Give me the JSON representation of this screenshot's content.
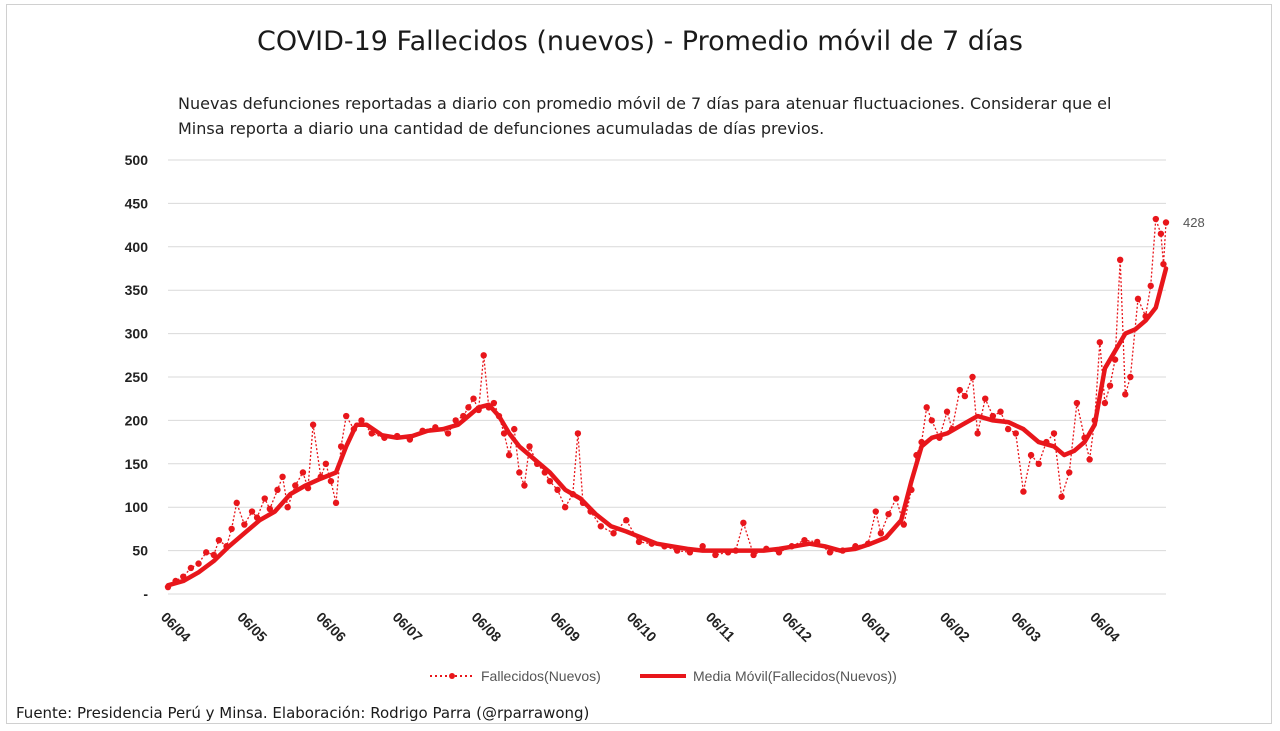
{
  "source_text": "Fuente: Presidencia Perú y Minsa. Elaboración: Rodrigo Parra (@rparrawong)",
  "colors": {
    "series": "#e8161b",
    "grid": "#d9d9d9",
    "text": "#222222"
  },
  "chart_data": {
    "type": "line",
    "title": "COVID-19 Fallecidos (nuevos) - Promedio móvil de 7 días",
    "subtitle": "Nuevas defunciones reportadas a diario con promedio móvil de 7 días para atenuar fluctuaciones. Considerar que el Minsa reporta a diario una cantidad de defunciones acumuladas de días previos.",
    "xlabel": "",
    "ylabel": "",
    "ylim": [
      0,
      500
    ],
    "yticks": [
      0,
      50,
      100,
      150,
      200,
      250,
      300,
      350,
      400,
      450,
      500
    ],
    "ytick_labels": [
      "-",
      "50",
      "100",
      "150",
      "200",
      "250",
      "300",
      "350",
      "400",
      "450",
      "500"
    ],
    "x_range_days": [
      0,
      392
    ],
    "xticks": [
      {
        "day": 0,
        "label": "06/04"
      },
      {
        "day": 30,
        "label": "06/05"
      },
      {
        "day": 61,
        "label": "06/06"
      },
      {
        "day": 91,
        "label": "06/07"
      },
      {
        "day": 122,
        "label": "06/08"
      },
      {
        "day": 153,
        "label": "06/09"
      },
      {
        "day": 183,
        "label": "06/10"
      },
      {
        "day": 214,
        "label": "06/11"
      },
      {
        "day": 244,
        "label": "06/12"
      },
      {
        "day": 275,
        "label": "06/01"
      },
      {
        "day": 306,
        "label": "06/02"
      },
      {
        "day": 334,
        "label": "06/03"
      },
      {
        "day": 365,
        "label": "06/04"
      }
    ],
    "last_value_label": "428",
    "series": [
      {
        "name": "Fallecidos(Nuevos)",
        "style": "dotted-with-markers",
        "points": [
          [
            0,
            8
          ],
          [
            3,
            15
          ],
          [
            6,
            20
          ],
          [
            9,
            30
          ],
          [
            12,
            35
          ],
          [
            15,
            48
          ],
          [
            18,
            45
          ],
          [
            20,
            62
          ],
          [
            23,
            55
          ],
          [
            25,
            75
          ],
          [
            27,
            105
          ],
          [
            30,
            80
          ],
          [
            33,
            95
          ],
          [
            35,
            88
          ],
          [
            38,
            110
          ],
          [
            40,
            98
          ],
          [
            43,
            120
          ],
          [
            45,
            135
          ],
          [
            47,
            100
          ],
          [
            50,
            125
          ],
          [
            53,
            140
          ],
          [
            55,
            122
          ],
          [
            57,
            195
          ],
          [
            60,
            135
          ],
          [
            62,
            150
          ],
          [
            64,
            130
          ],
          [
            66,
            105
          ],
          [
            68,
            170
          ],
          [
            70,
            205
          ],
          [
            73,
            190
          ],
          [
            76,
            200
          ],
          [
            80,
            185
          ],
          [
            85,
            180
          ],
          [
            90,
            182
          ],
          [
            95,
            178
          ],
          [
            100,
            188
          ],
          [
            105,
            192
          ],
          [
            110,
            185
          ],
          [
            113,
            200
          ],
          [
            116,
            205
          ],
          [
            118,
            215
          ],
          [
            120,
            225
          ],
          [
            122,
            212
          ],
          [
            124,
            275
          ],
          [
            126,
            215
          ],
          [
            128,
            220
          ],
          [
            130,
            205
          ],
          [
            132,
            185
          ],
          [
            134,
            160
          ],
          [
            136,
            190
          ],
          [
            138,
            140
          ],
          [
            140,
            125
          ],
          [
            142,
            170
          ],
          [
            145,
            150
          ],
          [
            148,
            140
          ],
          [
            150,
            130
          ],
          [
            153,
            120
          ],
          [
            156,
            100
          ],
          [
            159,
            115
          ],
          [
            161,
            185
          ],
          [
            163,
            105
          ],
          [
            166,
            95
          ],
          [
            170,
            78
          ],
          [
            175,
            70
          ],
          [
            180,
            85
          ],
          [
            185,
            60
          ],
          [
            190,
            58
          ],
          [
            195,
            55
          ],
          [
            200,
            50
          ],
          [
            205,
            48
          ],
          [
            210,
            55
          ],
          [
            215,
            45
          ],
          [
            220,
            48
          ],
          [
            223,
            50
          ],
          [
            226,
            82
          ],
          [
            230,
            45
          ],
          [
            235,
            52
          ],
          [
            240,
            48
          ],
          [
            245,
            55
          ],
          [
            250,
            62
          ],
          [
            255,
            60
          ],
          [
            260,
            48
          ],
          [
            265,
            50
          ],
          [
            270,
            55
          ],
          [
            275,
            58
          ],
          [
            278,
            95
          ],
          [
            280,
            70
          ],
          [
            283,
            92
          ],
          [
            286,
            110
          ],
          [
            289,
            80
          ],
          [
            292,
            120
          ],
          [
            294,
            160
          ],
          [
            296,
            175
          ],
          [
            298,
            215
          ],
          [
            300,
            200
          ],
          [
            303,
            180
          ],
          [
            306,
            210
          ],
          [
            308,
            190
          ],
          [
            311,
            235
          ],
          [
            313,
            228
          ],
          [
            316,
            250
          ],
          [
            318,
            185
          ],
          [
            321,
            225
          ],
          [
            324,
            205
          ],
          [
            327,
            210
          ],
          [
            330,
            190
          ],
          [
            333,
            185
          ],
          [
            336,
            118
          ],
          [
            339,
            160
          ],
          [
            342,
            150
          ],
          [
            345,
            175
          ],
          [
            348,
            185
          ],
          [
            351,
            112
          ],
          [
            354,
            140
          ],
          [
            357,
            220
          ],
          [
            360,
            180
          ],
          [
            362,
            155
          ],
          [
            364,
            200
          ],
          [
            366,
            290
          ],
          [
            368,
            220
          ],
          [
            370,
            240
          ],
          [
            372,
            270
          ],
          [
            374,
            385
          ],
          [
            376,
            230
          ],
          [
            378,
            250
          ],
          [
            381,
            340
          ],
          [
            384,
            320
          ],
          [
            386,
            355
          ],
          [
            388,
            432
          ],
          [
            390,
            415
          ],
          [
            391,
            380
          ],
          [
            392,
            428
          ]
        ]
      },
      {
        "name": "Media Móvil(Fallecidos(Nuevos))",
        "style": "solid-thick",
        "points": [
          [
            0,
            10
          ],
          [
            6,
            15
          ],
          [
            12,
            25
          ],
          [
            18,
            38
          ],
          [
            24,
            55
          ],
          [
            30,
            70
          ],
          [
            36,
            85
          ],
          [
            42,
            95
          ],
          [
            48,
            115
          ],
          [
            54,
            125
          ],
          [
            60,
            133
          ],
          [
            66,
            140
          ],
          [
            70,
            170
          ],
          [
            74,
            195
          ],
          [
            78,
            195
          ],
          [
            84,
            183
          ],
          [
            90,
            180
          ],
          [
            96,
            182
          ],
          [
            102,
            188
          ],
          [
            108,
            190
          ],
          [
            114,
            195
          ],
          [
            118,
            205
          ],
          [
            122,
            215
          ],
          [
            126,
            218
          ],
          [
            130,
            205
          ],
          [
            134,
            185
          ],
          [
            138,
            170
          ],
          [
            144,
            155
          ],
          [
            150,
            140
          ],
          [
            156,
            120
          ],
          [
            162,
            110
          ],
          [
            168,
            92
          ],
          [
            174,
            78
          ],
          [
            180,
            72
          ],
          [
            186,
            65
          ],
          [
            192,
            58
          ],
          [
            198,
            55
          ],
          [
            204,
            52
          ],
          [
            210,
            50
          ],
          [
            216,
            50
          ],
          [
            222,
            50
          ],
          [
            228,
            50
          ],
          [
            234,
            50
          ],
          [
            240,
            52
          ],
          [
            246,
            55
          ],
          [
            252,
            58
          ],
          [
            258,
            55
          ],
          [
            264,
            50
          ],
          [
            270,
            52
          ],
          [
            276,
            58
          ],
          [
            282,
            65
          ],
          [
            288,
            85
          ],
          [
            292,
            130
          ],
          [
            296,
            170
          ],
          [
            300,
            180
          ],
          [
            306,
            185
          ],
          [
            312,
            195
          ],
          [
            318,
            205
          ],
          [
            324,
            200
          ],
          [
            330,
            198
          ],
          [
            336,
            190
          ],
          [
            342,
            175
          ],
          [
            348,
            170
          ],
          [
            352,
            160
          ],
          [
            356,
            165
          ],
          [
            360,
            175
          ],
          [
            364,
            195
          ],
          [
            368,
            260
          ],
          [
            372,
            280
          ],
          [
            376,
            300
          ],
          [
            380,
            305
          ],
          [
            384,
            315
          ],
          [
            388,
            330
          ],
          [
            392,
            375
          ]
        ]
      }
    ]
  }
}
